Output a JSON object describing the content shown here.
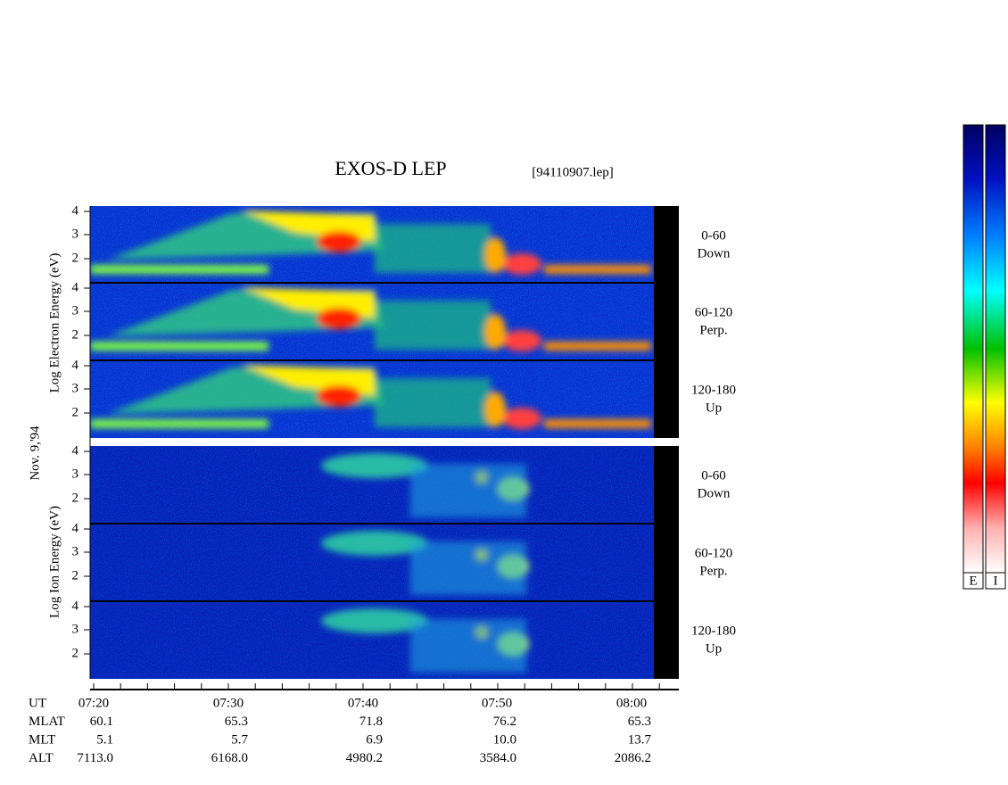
{
  "header": {
    "title": "EXOS-D LEP",
    "file": "[94110907.lep]"
  },
  "date": "Nov. 9,'94",
  "electron_axis_label": "Log Electron Energy (eV)",
  "ion_axis_label": "Log Ion Energy (eV)",
  "energy_ticks": [
    "4",
    "3",
    "2"
  ],
  "panels": [
    {
      "angle": "0-60",
      "direction": "Down"
    },
    {
      "angle": "60-120",
      "direction": "Perp."
    },
    {
      "angle": "120-180",
      "direction": "Up"
    },
    {
      "angle": "0-60",
      "direction": "Down"
    },
    {
      "angle": "60-120",
      "direction": "Perp."
    },
    {
      "angle": "120-180",
      "direction": "Up"
    }
  ],
  "orbit_table": [
    {
      "name": "UT",
      "values": [
        "07:20",
        "07:30",
        "07:40",
        "07:50",
        "08:00"
      ]
    },
    {
      "name": "MLAT",
      "values": [
        "60.1",
        "65.3",
        "71.8",
        "76.2",
        "65.3"
      ]
    },
    {
      "name": "MLT",
      "values": [
        "5.1",
        "5.7",
        "6.9",
        "10.0",
        "13.7"
      ]
    },
    {
      "name": "ALT",
      "values": [
        "7113.0",
        "6168.0",
        "4980.2",
        "3584.0",
        "2086.2"
      ]
    }
  ],
  "colorbars": [
    "E",
    "I"
  ]
}
